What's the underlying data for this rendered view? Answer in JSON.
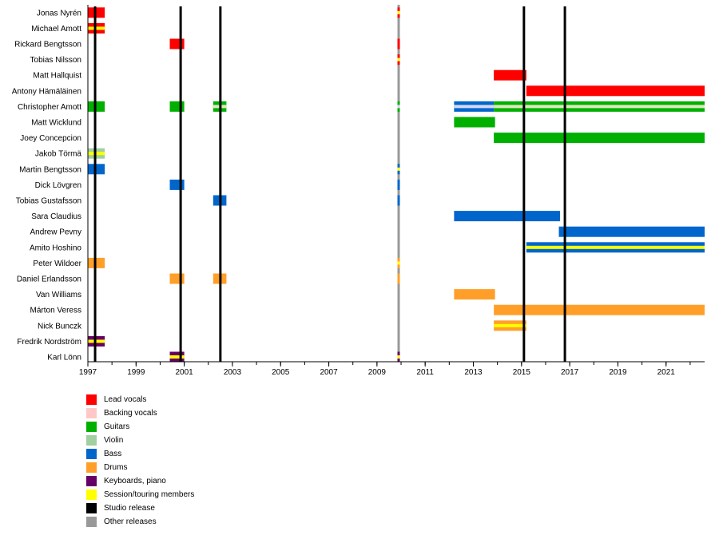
{
  "chart_data": {
    "type": "timeline",
    "title": "",
    "xlabel": "",
    "ylabel": "",
    "xlim": [
      1997.0,
      2022.6
    ],
    "x_ticks": [
      1997,
      1999,
      2001,
      2003,
      2005,
      2007,
      2009,
      2011,
      2013,
      2015,
      2017,
      2019,
      2021
    ],
    "x_minor_ticks_every": 1,
    "colors": {
      "lead_vocals": "#ff0000",
      "backing_vocals": "#ffc8c8",
      "guitars": "#00b000",
      "violin": "#a0d0a0",
      "bass": "#0066cc",
      "drums": "#ff9f2a",
      "keyboards": "#660066",
      "session": "#ffff00",
      "studio_release": "#000000",
      "other_release": "#999999",
      "bass_backing_inner": "#d8d8f0",
      "guitar_violin_inner": "#e0e8c0"
    },
    "members": [
      "Jonas Nyrén",
      "Michael Amott",
      "Rickard Bengtsson",
      "Tobias Nilsson",
      "Matt Hallquist",
      "Antony Hämäläinen",
      "Christopher Amott",
      "Matt Wicklund",
      "Joey Concepcion",
      "Jakob Törmä",
      "Martin Bengtsson",
      "Dick Lövgren",
      "Tobias Gustafsson",
      "Sara Claudius",
      "Andrew Pevny",
      "Amito Hoshino",
      "Peter Wildoer",
      "Daniel Erlandsson",
      "Van Williams",
      "Márton Veress",
      "Nick Bunczk",
      "Fredrik Nordström",
      "Karl Lönn"
    ],
    "bars": [
      {
        "member": 0,
        "start": 1997.0,
        "end": 1997.7,
        "color": "lead_vocals"
      },
      {
        "member": 1,
        "start": 1997.0,
        "end": 1997.7,
        "color": "lead_vocals",
        "inner": "session"
      },
      {
        "member": 2,
        "start": 2000.4,
        "end": 2001.0,
        "color": "lead_vocals"
      },
      {
        "member": 6,
        "start": 1997.0,
        "end": 1997.7,
        "color": "guitars"
      },
      {
        "member": 6,
        "start": 2000.4,
        "end": 2001.0,
        "color": "guitars"
      },
      {
        "member": 6,
        "start": 2002.2,
        "end": 2002.75,
        "color": "guitars",
        "inner": "guitar_violin_inner"
      },
      {
        "member": 9,
        "start": 1997.0,
        "end": 1997.7,
        "color": "violin",
        "inner": "session"
      },
      {
        "member": 10,
        "start": 1997.0,
        "end": 1997.7,
        "color": "bass"
      },
      {
        "member": 11,
        "start": 2000.4,
        "end": 2001.0,
        "color": "bass"
      },
      {
        "member": 12,
        "start": 2002.2,
        "end": 2002.75,
        "color": "bass"
      },
      {
        "member": 16,
        "start": 1997.0,
        "end": 1997.7,
        "color": "drums"
      },
      {
        "member": 17,
        "start": 2000.4,
        "end": 2001.0,
        "color": "drums"
      },
      {
        "member": 17,
        "start": 2002.2,
        "end": 2002.75,
        "color": "drums"
      },
      {
        "member": 21,
        "start": 1997.0,
        "end": 1997.7,
        "color": "keyboards",
        "inner": "session"
      },
      {
        "member": 22,
        "start": 2000.4,
        "end": 2001.0,
        "color": "keyboards",
        "inner": "session"
      },
      {
        "member": 0,
        "start": 2009.85,
        "end": 2009.95,
        "color": "lead_vocals",
        "inner": "session"
      },
      {
        "member": 2,
        "start": 2009.85,
        "end": 2009.95,
        "color": "lead_vocals"
      },
      {
        "member": 3,
        "start": 2009.85,
        "end": 2009.95,
        "color": "lead_vocals",
        "inner": "session"
      },
      {
        "member": 6,
        "start": 2009.85,
        "end": 2009.95,
        "color": "guitars",
        "inner": "bass_backing_inner"
      },
      {
        "member": 10,
        "start": 2009.85,
        "end": 2009.95,
        "color": "bass",
        "inner": "session"
      },
      {
        "member": 11,
        "start": 2009.85,
        "end": 2009.95,
        "color": "bass"
      },
      {
        "member": 12,
        "start": 2009.85,
        "end": 2009.95,
        "color": "bass"
      },
      {
        "member": 16,
        "start": 2009.85,
        "end": 2009.95,
        "color": "drums",
        "inner": "session"
      },
      {
        "member": 17,
        "start": 2009.85,
        "end": 2009.95,
        "color": "drums"
      },
      {
        "member": 22,
        "start": 2009.85,
        "end": 2009.95,
        "color": "keyboards",
        "inner": "session"
      },
      {
        "member": 4,
        "start": 2013.85,
        "end": 2015.2,
        "color": "lead_vocals"
      },
      {
        "member": 5,
        "start": 2015.2,
        "end": 2022.6,
        "color": "lead_vocals"
      },
      {
        "member": 6,
        "start": 2012.2,
        "end": 2013.85,
        "color": "bass",
        "inner": "bass_backing_inner"
      },
      {
        "member": 6,
        "start": 2013.85,
        "end": 2022.6,
        "color": "guitars",
        "inner": "guitar_violin_inner"
      },
      {
        "member": 7,
        "start": 2012.2,
        "end": 2013.9,
        "color": "guitars"
      },
      {
        "member": 8,
        "start": 2013.85,
        "end": 2022.6,
        "color": "guitars"
      },
      {
        "member": 13,
        "start": 2012.2,
        "end": 2016.6,
        "color": "bass"
      },
      {
        "member": 14,
        "start": 2016.55,
        "end": 2022.6,
        "color": "bass"
      },
      {
        "member": 15,
        "start": 2015.2,
        "end": 2022.6,
        "color": "bass",
        "inner": "session"
      },
      {
        "member": 18,
        "start": 2012.2,
        "end": 2013.9,
        "color": "drums"
      },
      {
        "member": 19,
        "start": 2013.85,
        "end": 2022.6,
        "color": "drums"
      },
      {
        "member": 20,
        "start": 2013.85,
        "end": 2015.2,
        "color": "drums",
        "inner": "session"
      }
    ],
    "releases": [
      {
        "type": "studio_release",
        "x": 1997.3
      },
      {
        "type": "studio_release",
        "x": 2000.85
      },
      {
        "type": "studio_release",
        "x": 2002.5
      },
      {
        "type": "other_release",
        "x": 2009.9
      },
      {
        "type": "studio_release",
        "x": 2015.1
      },
      {
        "type": "studio_release",
        "x": 2016.8
      }
    ],
    "legend": {
      "placement": "bottom-left",
      "entries": [
        {
          "label": "Lead vocals",
          "color": "lead_vocals"
        },
        {
          "label": "Backing vocals",
          "color": "backing_vocals"
        },
        {
          "label": "Guitars",
          "color": "guitars"
        },
        {
          "label": "Violin",
          "color": "violin"
        },
        {
          "label": "Bass",
          "color": "bass"
        },
        {
          "label": "Drums",
          "color": "drums"
        },
        {
          "label": "Keyboards, piano",
          "color": "keyboards"
        },
        {
          "label": "Session/touring members",
          "color": "session"
        },
        {
          "label": "Studio release",
          "color": "studio_release"
        },
        {
          "label": "Other releases",
          "color": "other_release"
        }
      ]
    }
  }
}
